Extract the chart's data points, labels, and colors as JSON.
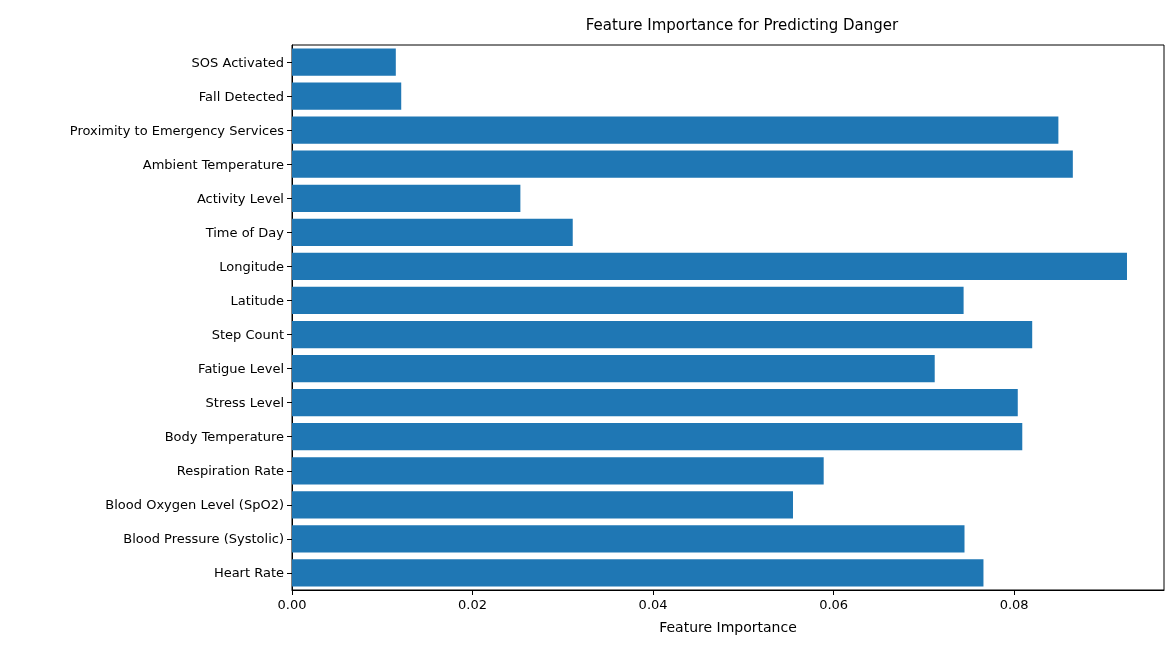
{
  "chart_data": {
    "type": "bar",
    "orientation": "horizontal",
    "title": "Feature Importance for Predicting Danger",
    "xlabel": "Feature Importance",
    "categories": [
      "SOS Activated",
      "Fall Detected",
      "Proximity to Emergency Services",
      "Ambient Temperature",
      "Activity Level",
      "Time of Day",
      "Longitude",
      "Latitude",
      "Step Count",
      "Fatigue Level",
      "Stress Level",
      "Body Temperature",
      "Respiration Rate",
      "Blood Oxygen Level (SpO2)",
      "Blood Pressure (Systolic)",
      "Heart Rate"
    ],
    "values": [
      0.0115,
      0.0121,
      0.0849,
      0.0865,
      0.0253,
      0.0311,
      0.0925,
      0.0744,
      0.082,
      0.0712,
      0.0804,
      0.0809,
      0.0589,
      0.0555,
      0.0745,
      0.0766
    ],
    "color": "#1f77b4",
    "xlim": [
      0,
      0.0966
    ],
    "xticks": [
      {
        "value": 0,
        "label": "0.00"
      },
      {
        "value": 0.02,
        "label": "0.02"
      },
      {
        "value": 0.04,
        "label": "0.04"
      },
      {
        "value": 0.06,
        "label": "0.06"
      },
      {
        "value": 0.08,
        "label": "0.08"
      }
    ],
    "grid": false
  }
}
